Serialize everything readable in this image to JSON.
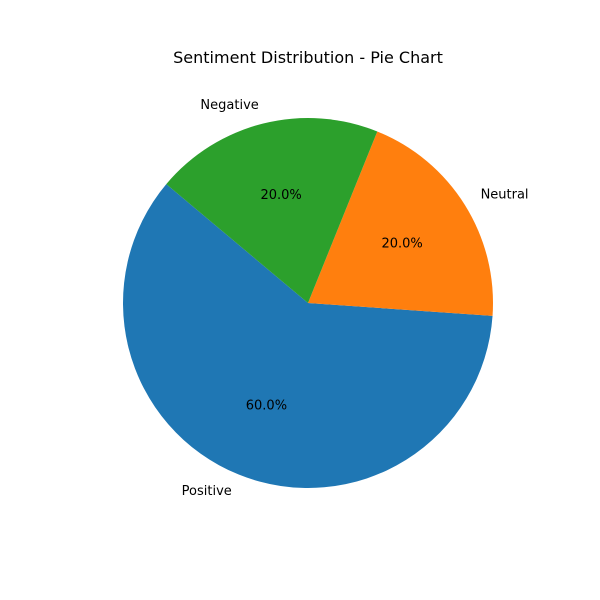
{
  "chart_data": {
    "type": "pie",
    "title": "Sentiment Distribution - Pie Chart",
    "categories": [
      "Positive",
      "Neutral",
      "Negative"
    ],
    "values": [
      60,
      20,
      20
    ],
    "percent_labels": [
      "60.0%",
      "20.0%",
      "20.0%"
    ],
    "colors": [
      "#1f77b4",
      "#ff7f0e",
      "#2ca02c"
    ],
    "start_angle_deg": 140,
    "direction": "counterclockwise",
    "legend": "none"
  }
}
